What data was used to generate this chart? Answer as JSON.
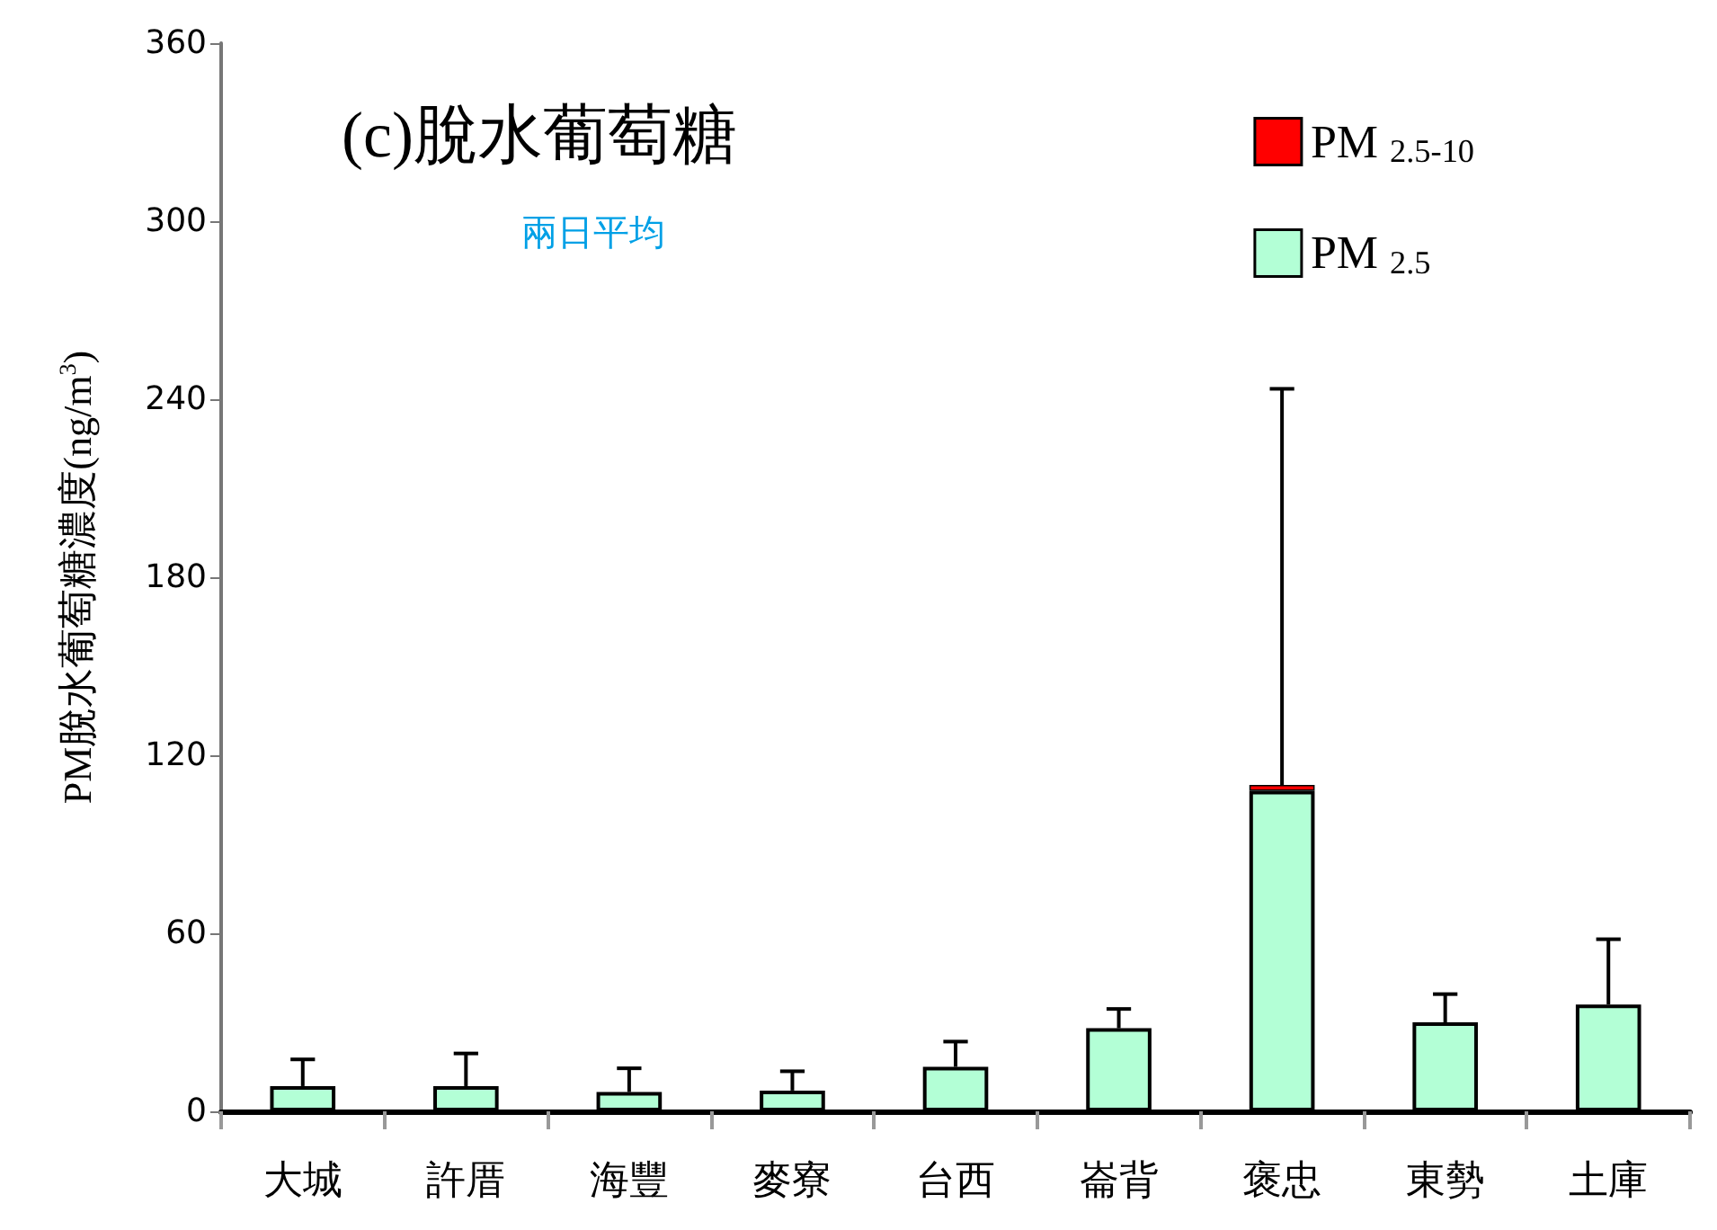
{
  "chart_data": {
    "type": "bar",
    "stacked": true,
    "title": "(c)脫水葡萄糖",
    "subtitle": "兩日平均",
    "ylabel": "PM脫水葡萄糖濃度(ng/m$^{3}$)",
    "categories": [
      "大城",
      "許厝",
      "海豐",
      "麥寮",
      "台西",
      "崙背",
      "褒忠",
      "東勢",
      "土庫"
    ],
    "series": [
      {
        "name": "PM $_{2.5}$",
        "color": "#b3ffd6",
        "values": [
          8.5,
          8.5,
          6.5,
          7,
          15,
          28,
          108,
          30,
          36
        ],
        "errors": [
          [
            8.5,
            17.5
          ],
          [
            8.5,
            19.5
          ],
          [
            6.5,
            14.5
          ],
          [
            7,
            13.5
          ],
          [
            15,
            23.5
          ],
          [
            28,
            34.5
          ],
          [
            110,
            243.5
          ],
          [
            30,
            39.5
          ],
          [
            36,
            58
          ]
        ]
      },
      {
        "name": "PM $_{2.5-10}$",
        "color": "#ff0000",
        "values": [
          null,
          null,
          null,
          null,
          null,
          null,
          2,
          null,
          null
        ]
      }
    ],
    "ylim": [
      0,
      360
    ],
    "yticks": [
      0,
      60,
      120,
      180,
      240,
      300,
      360
    ],
    "grid": false,
    "legend": "top right"
  }
}
